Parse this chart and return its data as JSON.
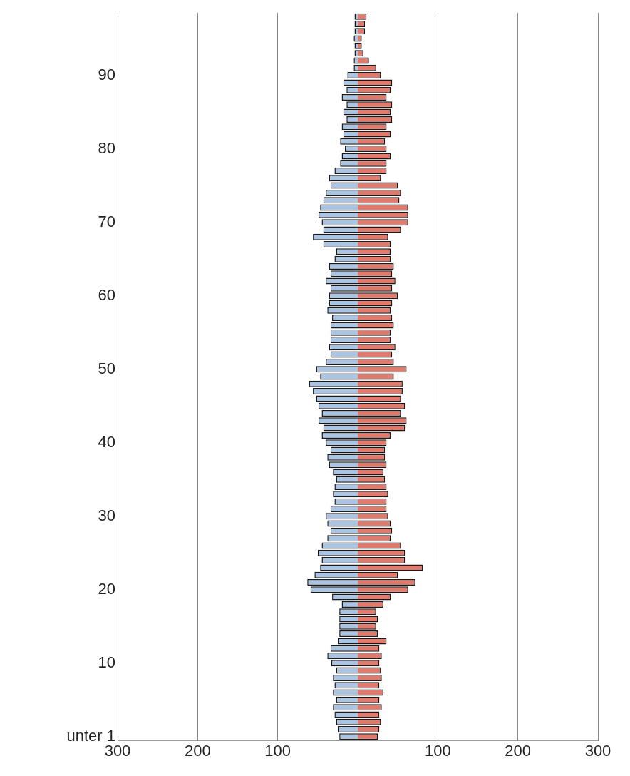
{
  "chart_data": {
    "type": "bar",
    "orientation": "horizontal",
    "stacked": true,
    "categories": [
      null,
      null,
      null,
      null,
      null,
      null,
      null,
      null,
      "90",
      null,
      null,
      null,
      null,
      null,
      null,
      null,
      null,
      null,
      "80",
      null,
      null,
      null,
      null,
      null,
      null,
      null,
      null,
      null,
      "70",
      null,
      null,
      null,
      null,
      null,
      null,
      null,
      null,
      null,
      "60",
      null,
      null,
      null,
      null,
      null,
      null,
      null,
      null,
      null,
      "50",
      null,
      null,
      null,
      null,
      null,
      null,
      null,
      null,
      null,
      "40",
      null,
      null,
      null,
      null,
      null,
      null,
      null,
      null,
      null,
      "30",
      null,
      null,
      null,
      null,
      null,
      null,
      null,
      null,
      null,
      "20",
      null,
      null,
      null,
      null,
      null,
      null,
      null,
      null,
      null,
      "10",
      null,
      null,
      null,
      null,
      null,
      null,
      null,
      null,
      null,
      "unter 1"
    ],
    "series": [
      {
        "color": "#aac4e2",
        "values": [
          -4,
          -4,
          -4,
          -5,
          -4,
          -4,
          -5,
          -5,
          -13,
          -18,
          -14,
          -20,
          -14,
          -18,
          -14,
          -20,
          -18,
          -22,
          -16,
          -20,
          -22,
          -29,
          -36,
          -34,
          -40,
          -43,
          -47,
          -49,
          -45,
          -43,
          -56,
          -43,
          -27,
          -29,
          -36,
          -34,
          -40,
          -34,
          -36,
          -36,
          -38,
          -32,
          -34,
          -34,
          -34,
          -36,
          -34,
          -40,
          -52,
          -47,
          -61,
          -56,
          -52,
          -49,
          -45,
          -49,
          -43,
          -45,
          -40,
          -34,
          -38,
          -36,
          -31,
          -27,
          -29,
          -31,
          -29,
          -34,
          -40,
          -38,
          -34,
          -38,
          -45,
          -50,
          -45,
          -47,
          -54,
          -63,
          -59,
          -32,
          -20,
          -23,
          -23,
          -23,
          -23,
          -25,
          -34,
          -38,
          -33,
          -27,
          -31,
          -29,
          -31,
          -27,
          -31,
          -29,
          -27,
          -25,
          -23
        ]
      },
      {
        "color": "#e07a6c",
        "values": [
          11,
          9,
          9,
          5,
          5,
          7,
          14,
          23,
          29,
          43,
          41,
          36,
          43,
          41,
          43,
          36,
          41,
          34,
          36,
          41,
          36,
          36,
          29,
          50,
          54,
          52,
          63,
          63,
          63,
          54,
          38,
          41,
          41,
          41,
          45,
          43,
          47,
          43,
          50,
          43,
          41,
          43,
          45,
          41,
          41,
          47,
          43,
          45,
          61,
          45,
          56,
          56,
          54,
          59,
          54,
          61,
          59,
          41,
          36,
          34,
          34,
          36,
          32,
          34,
          36,
          38,
          36,
          36,
          38,
          41,
          43,
          41,
          54,
          59,
          59,
          81,
          50,
          72,
          63,
          41,
          32,
          23,
          25,
          23,
          25,
          36,
          27,
          30,
          27,
          29,
          30,
          27,
          32,
          27,
          30,
          27,
          29,
          27,
          25
        ]
      }
    ],
    "xlim": [
      -300,
      300
    ],
    "xticks": [
      {
        "value": -300,
        "label": "300"
      },
      {
        "value": -200,
        "label": "200"
      },
      {
        "value": -100,
        "label": "100"
      },
      100,
      200,
      300
    ],
    "grid": "x"
  }
}
